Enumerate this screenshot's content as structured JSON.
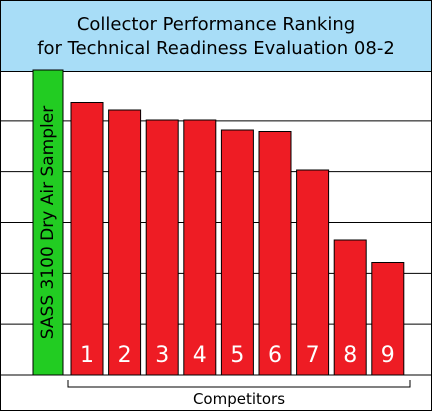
{
  "chart_data": {
    "type": "bar",
    "title": [
      "Collector Performance Ranking",
      "for Technical Readiness Evaluation 08-2"
    ],
    "reference": {
      "label": "SASS 3100 Dry Air Sampler",
      "value": 6.1,
      "color": "#22cc22"
    },
    "categories": [
      "1",
      "2",
      "3",
      "4",
      "5",
      "6",
      "7",
      "8",
      "9"
    ],
    "values": [
      5.45,
      5.3,
      5.1,
      5.1,
      4.9,
      4.87,
      4.1,
      2.7,
      2.25
    ],
    "bar_color": "#ee1c24",
    "xlabel": "Competitors",
    "ylim": [
      0,
      6.1
    ],
    "grid": true,
    "gridline_count": 6
  }
}
